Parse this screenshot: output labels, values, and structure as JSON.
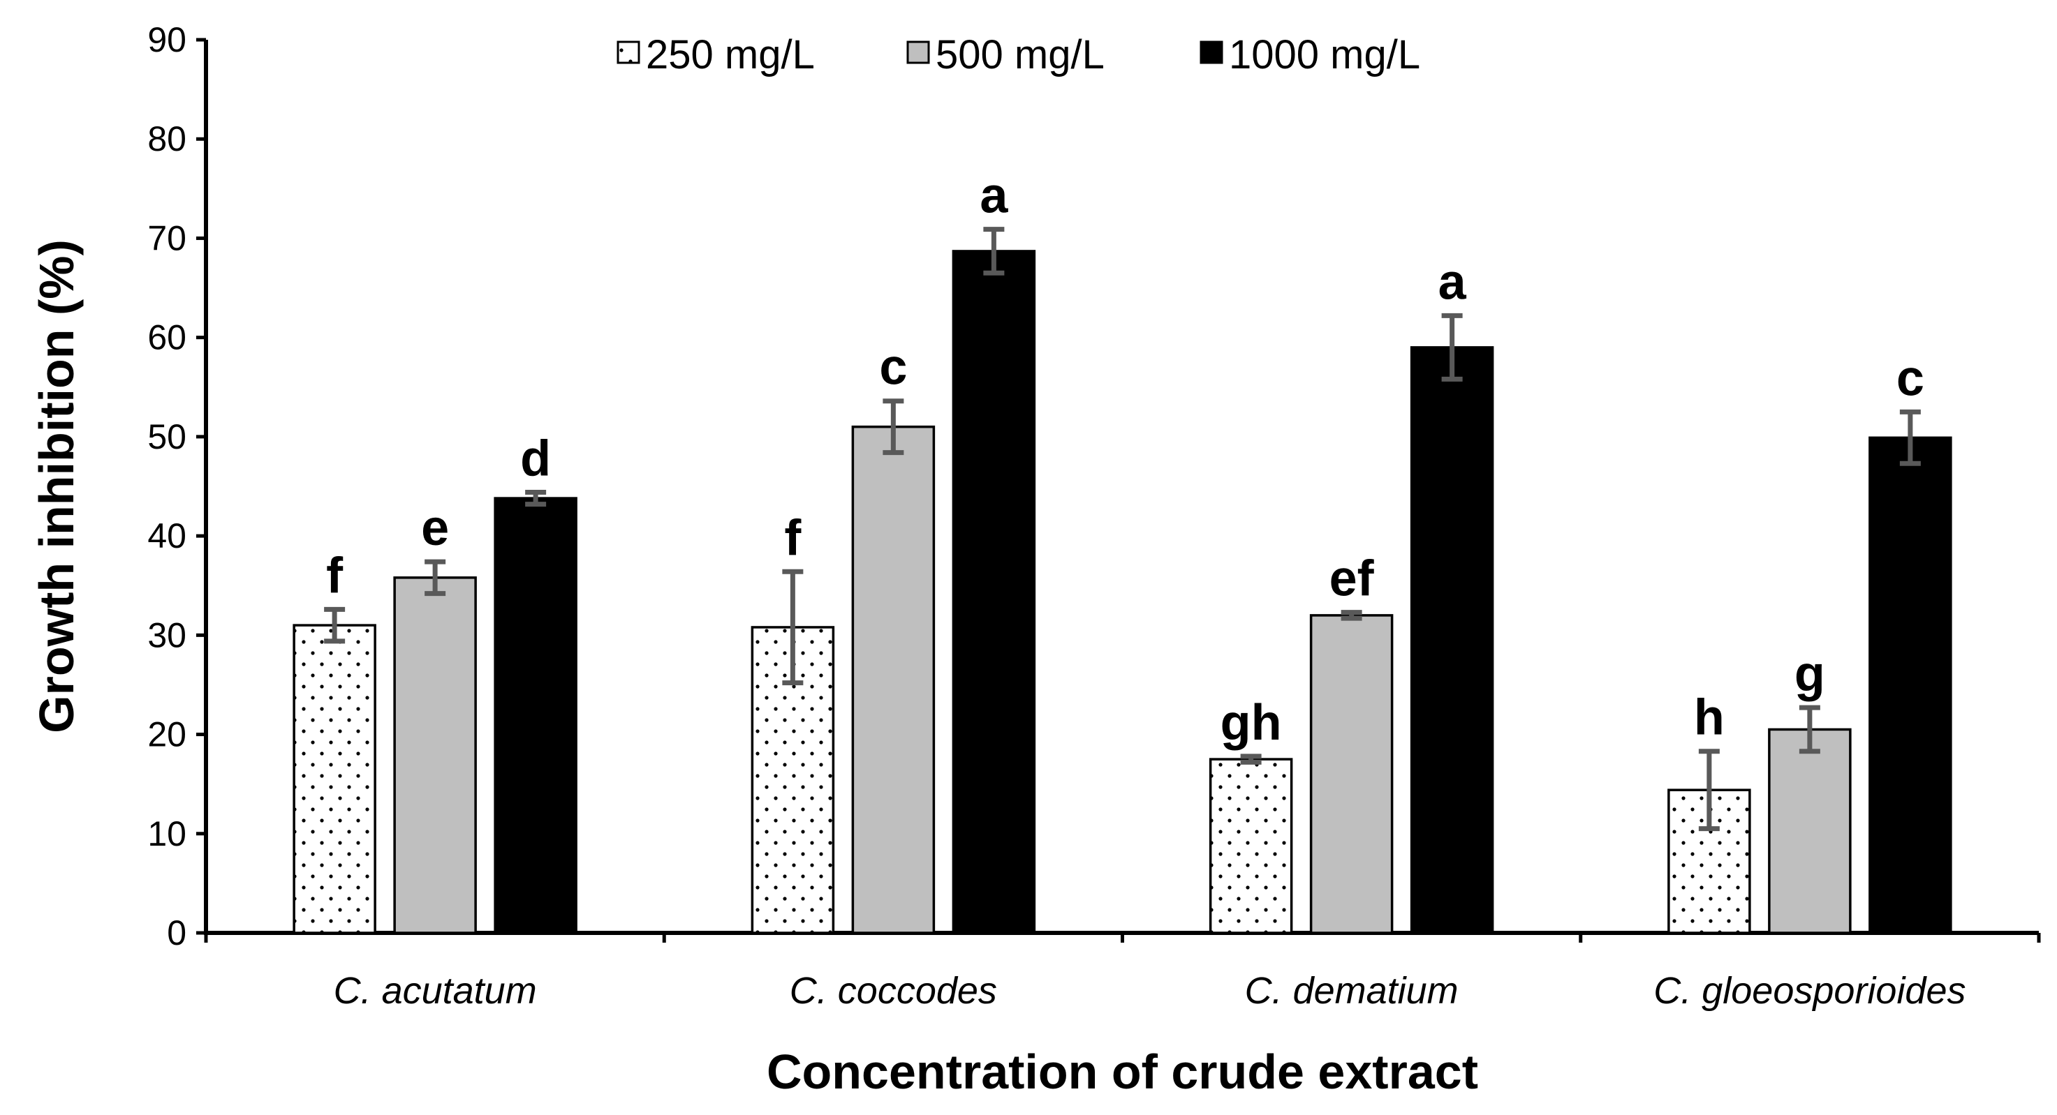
{
  "chart_data": {
    "type": "bar",
    "title": "",
    "xlabel": "Concentration of crude extract",
    "ylabel": "Growth inhibition (%)",
    "ylim": [
      0,
      90
    ],
    "yticks": [
      0,
      10,
      20,
      30,
      40,
      50,
      60,
      70,
      80,
      90
    ],
    "grid": false,
    "legend_position": "top-center",
    "categories": [
      "C. acutatum",
      "C. coccodes",
      "C. dematium",
      "C. gloeosporioides"
    ],
    "series": [
      {
        "name": "250 mg/L",
        "fill": "#ffffff",
        "pattern": "dots",
        "values": [
          31.0,
          30.8,
          17.5,
          14.4
        ],
        "errors": [
          1.6,
          5.6,
          0.3,
          3.9
        ],
        "letters": [
          "f",
          "f",
          "gh",
          "h"
        ]
      },
      {
        "name": "500 mg/L",
        "fill": "#bfbfbf",
        "pattern": "solid",
        "values": [
          35.8,
          51.0,
          32.0,
          20.5
        ],
        "errors": [
          1.6,
          2.6,
          0.3,
          2.2
        ],
        "letters": [
          "e",
          "c",
          "ef",
          "g"
        ]
      },
      {
        "name": "1000 mg/L",
        "fill": "#000000",
        "pattern": "solid",
        "values": [
          43.8,
          68.7,
          59.0,
          49.9
        ],
        "errors": [
          0.6,
          2.2,
          3.2,
          2.6
        ],
        "letters": [
          "d",
          "a",
          "a",
          "c"
        ]
      }
    ],
    "colors": {
      "bar_edge": "#000000",
      "error_bar": "#595959",
      "axis": "#000000"
    }
  }
}
